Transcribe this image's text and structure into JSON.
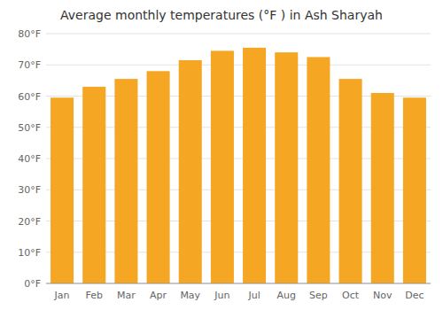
{
  "chart_data": {
    "type": "bar",
    "title": "Average monthly temperatures (°F ) in Ash Sharyah",
    "categories": [
      "Jan",
      "Feb",
      "Mar",
      "Apr",
      "May",
      "Jun",
      "Jul",
      "Aug",
      "Sep",
      "Oct",
      "Nov",
      "Dec"
    ],
    "values": [
      59.5,
      63.0,
      65.5,
      68.0,
      71.5,
      74.5,
      75.5,
      74.0,
      72.5,
      65.5,
      61.0,
      59.5
    ],
    "color": "#F5A623",
    "ylim": [
      0,
      80
    ],
    "yticks": [
      {
        "value": 0,
        "label": "0°F"
      },
      {
        "value": 10,
        "label": "10°F"
      },
      {
        "value": 20,
        "label": "20°F"
      },
      {
        "value": 30,
        "label": "30°F"
      },
      {
        "value": 40,
        "label": "40°F"
      },
      {
        "value": 50,
        "label": "50°F"
      },
      {
        "value": 60,
        "label": "60°F"
      },
      {
        "value": 70,
        "label": "70°F"
      },
      {
        "value": 80,
        "label": "80°F"
      }
    ],
    "grid": true
  }
}
